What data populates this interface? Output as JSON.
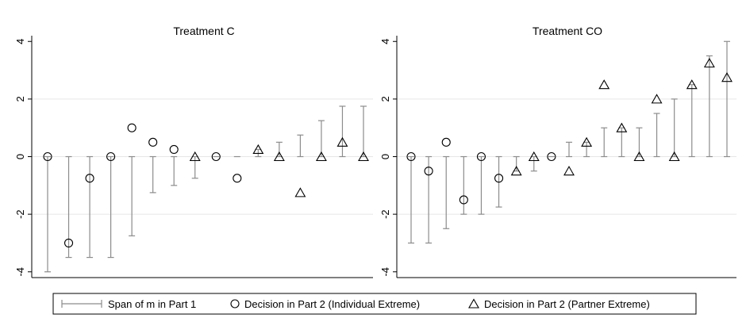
{
  "chart_data": [
    {
      "type": "scatter",
      "title": "Treatment C",
      "ylim": [
        -4.2,
        4.2
      ],
      "yticks": [
        -4,
        -2,
        0,
        2,
        4
      ],
      "ytick_labels": [
        "-4",
        "-2",
        "0",
        "2",
        "4"
      ],
      "grid": "horizontal at 2 and -2",
      "n": 16,
      "ranges": [
        [
          -4,
          0
        ],
        [
          -3.5,
          0
        ],
        [
          -3.5,
          0
        ],
        [
          -3.5,
          0
        ],
        [
          -2.75,
          0
        ],
        [
          -1.25,
          0
        ],
        [
          -1,
          0
        ],
        [
          -0.75,
          0
        ],
        [
          0,
          0
        ],
        [
          0,
          0
        ],
        [
          0,
          0.25
        ],
        [
          0,
          0.5
        ],
        [
          0,
          0.75
        ],
        [
          0,
          1.25
        ],
        [
          0,
          1.75
        ],
        [
          0,
          1.75
        ]
      ],
      "decisions": [
        {
          "x": 1,
          "y": 0,
          "type": "individual"
        },
        {
          "x": 2,
          "y": -3,
          "type": "individual"
        },
        {
          "x": 3,
          "y": -0.75,
          "type": "individual"
        },
        {
          "x": 4,
          "y": 0,
          "type": "individual"
        },
        {
          "x": 5,
          "y": 1,
          "type": "individual"
        },
        {
          "x": 6,
          "y": 0.5,
          "type": "individual"
        },
        {
          "x": 7,
          "y": 0.25,
          "type": "individual"
        },
        {
          "x": 8,
          "y": 0,
          "type": "partner"
        },
        {
          "x": 9,
          "y": 0,
          "type": "individual"
        },
        {
          "x": 10,
          "y": -0.75,
          "type": "individual"
        },
        {
          "x": 11,
          "y": 0.25,
          "type": "partner"
        },
        {
          "x": 12,
          "y": 0,
          "type": "partner"
        },
        {
          "x": 13,
          "y": -1.25,
          "type": "partner"
        },
        {
          "x": 14,
          "y": 0,
          "type": "partner"
        },
        {
          "x": 15,
          "y": 0.5,
          "type": "partner"
        },
        {
          "x": 16,
          "y": 0,
          "type": "partner"
        }
      ]
    },
    {
      "type": "scatter",
      "title": "Treatment CO",
      "ylim": [
        -4.2,
        4.2
      ],
      "yticks": [
        -4,
        -2,
        0,
        2,
        4
      ],
      "ytick_labels": [
        "-4",
        "-2",
        "0",
        "2",
        "4"
      ],
      "grid": "horizontal at 2 and -2",
      "n": 19,
      "ranges": [
        [
          -3,
          0
        ],
        [
          -3,
          0
        ],
        [
          -2.5,
          0
        ],
        [
          -2,
          0
        ],
        [
          -2,
          0
        ],
        [
          -1.75,
          0
        ],
        [
          -0.5,
          0
        ],
        [
          -0.5,
          0
        ],
        [
          0,
          0
        ],
        [
          0,
          0.5
        ],
        [
          0,
          0.5
        ],
        [
          0,
          1
        ],
        [
          0,
          1
        ],
        [
          0,
          1
        ],
        [
          0,
          1.5
        ],
        [
          0,
          2
        ],
        [
          0,
          2.5
        ],
        [
          0,
          3.5
        ],
        [
          0,
          4
        ]
      ],
      "decisions": [
        {
          "x": 1,
          "y": 0,
          "type": "individual"
        },
        {
          "x": 2,
          "y": -0.5,
          "type": "individual"
        },
        {
          "x": 3,
          "y": 0.5,
          "type": "individual"
        },
        {
          "x": 4,
          "y": -1.5,
          "type": "individual"
        },
        {
          "x": 5,
          "y": 0,
          "type": "individual"
        },
        {
          "x": 6,
          "y": -0.75,
          "type": "individual"
        },
        {
          "x": 7,
          "y": -0.5,
          "type": "partner"
        },
        {
          "x": 8,
          "y": 0,
          "type": "partner"
        },
        {
          "x": 9,
          "y": 0,
          "type": "individual"
        },
        {
          "x": 10,
          "y": -0.5,
          "type": "partner"
        },
        {
          "x": 11,
          "y": 0.5,
          "type": "partner"
        },
        {
          "x": 12,
          "y": 2.5,
          "type": "partner"
        },
        {
          "x": 13,
          "y": 1,
          "type": "partner"
        },
        {
          "x": 14,
          "y": 0,
          "type": "partner"
        },
        {
          "x": 15,
          "y": 2,
          "type": "partner"
        },
        {
          "x": 16,
          "y": 0,
          "type": "partner"
        },
        {
          "x": 17,
          "y": 2.5,
          "type": "partner"
        },
        {
          "x": 18,
          "y": 3.25,
          "type": "partner"
        },
        {
          "x": 19,
          "y": 2.75,
          "type": "partner"
        }
      ]
    }
  ],
  "legend": {
    "position": "bottom",
    "items": [
      {
        "marker": "range",
        "label": "Span of m in Part 1"
      },
      {
        "marker": "circle",
        "label": "Decision in Part 2 (Individual Extreme)"
      },
      {
        "marker": "triangle",
        "label": "Decision in Part 2 (Partner Extreme)"
      }
    ]
  },
  "colors": {
    "background": "#ffffff",
    "grid": "#e6e6e6",
    "range_line": "#8c8c8c",
    "marker": "#000000",
    "axis": "#000000"
  }
}
